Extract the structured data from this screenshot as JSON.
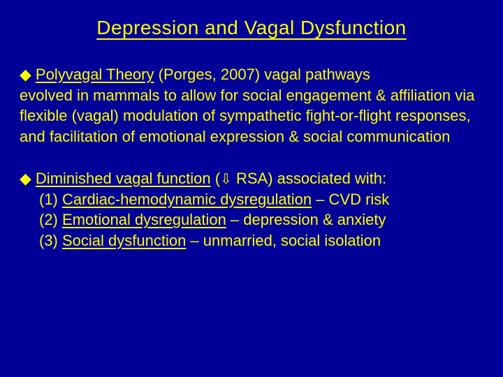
{
  "colors": {
    "background": "#000099",
    "text": "#ffff00"
  },
  "typography": {
    "title_fontsize": 28,
    "body_fontsize": 22,
    "font_family": "Arial"
  },
  "title": "Depression and Vagal Dysfunction",
  "para1": {
    "bullet": "◆",
    "underlined_lead": "Polyvagal Theory",
    "rest_line1": " (Porges, 2007) vagal pathways",
    "rest_body": "evolved in mammals to allow for social engagement & affiliation via flexible (vagal) modulation of sympathetic fight-or-flight responses, and facilitation of emotional expression & social communication"
  },
  "para2": {
    "bullet": "◆",
    "lead_underlined": "Diminished vagal function",
    "lead_rest_pre": " (",
    "arrow": "⇩",
    "lead_rest_post": " RSA) associated with:",
    "items": [
      {
        "num": "(1) ",
        "u": "Cardiac-hemodynamic dysregulation",
        "tail": " – CVD risk"
      },
      {
        "num": "(2) ",
        "u": "Emotional dysregulation",
        "tail": " – depression & anxiety"
      },
      {
        "num": "(3) ",
        "u": "Social dysfunction",
        "tail": " – unmarried, social isolation"
      }
    ]
  }
}
